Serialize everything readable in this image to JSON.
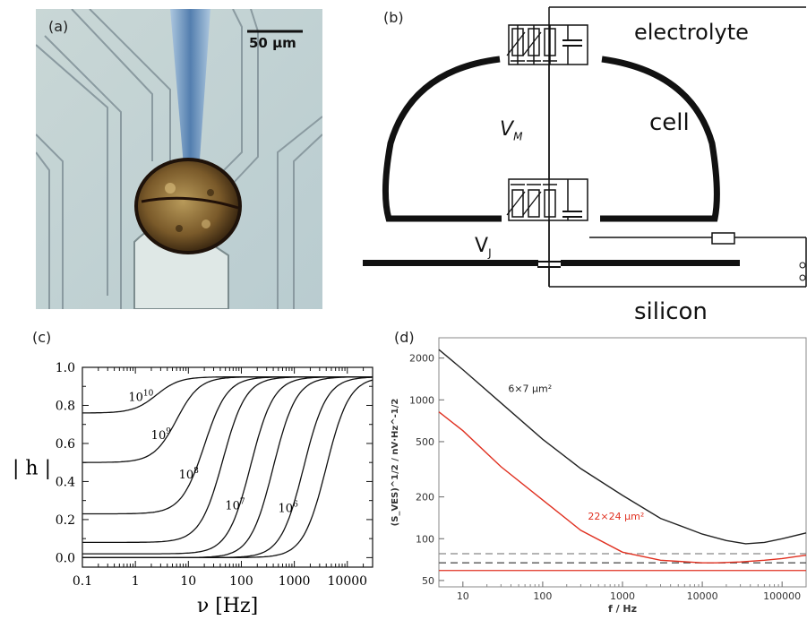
{
  "panels": {
    "a": {
      "label": "(a)",
      "scale_bar": "50 µm"
    },
    "b": {
      "label": "(b)",
      "electrolyte": "electrolyte",
      "cell": "cell",
      "silicon": "silicon",
      "vm": "V",
      "vm_sub": "M",
      "vj": "V",
      "vj_sub": "J"
    },
    "c": {
      "label": "(c)"
    },
    "d": {
      "label": "(d)"
    }
  },
  "chart_data": [
    {
      "id": "c",
      "type": "line",
      "title": "",
      "xlabel": "ν  [Hz]",
      "ylabel": "| h |",
      "xscale": "log",
      "xlim": [
        0.1,
        30000
      ],
      "ylim": [
        -0.05,
        1.0
      ],
      "xticks": [
        "0.1",
        "1",
        "10",
        "100",
        "1000",
        "10000"
      ],
      "yticks": [
        "0.0",
        "0.2",
        "0.4",
        "0.6",
        "0.8",
        "1.0"
      ],
      "grid": false,
      "series": [
        {
          "name": "10^10",
          "base": "10",
          "exp": "10",
          "low": 0.76,
          "high": 0.95,
          "fc": 2.5
        },
        {
          "name": "10^9",
          "base": "10",
          "exp": "9",
          "low": 0.5,
          "high": 0.95,
          "fc": 6
        },
        {
          "name": "10^8",
          "base": "10",
          "exp": "8",
          "low": 0.23,
          "high": 0.95,
          "fc": 20
        },
        {
          "name": "",
          "low": 0.08,
          "high": 0.95,
          "fc": 45
        },
        {
          "name": "10^7",
          "base": "10",
          "exp": "7",
          "low": 0.02,
          "high": 0.95,
          "fc": 150
        },
        {
          "name": "",
          "low": 0.0,
          "high": 0.95,
          "fc": 400
        },
        {
          "name": "10^6",
          "base": "10",
          "exp": "6",
          "low": 0.0,
          "high": 0.95,
          "fc": 1500
        },
        {
          "name": "",
          "low": 0.0,
          "high": 0.95,
          "fc": 4000
        }
      ]
    },
    {
      "id": "d",
      "type": "line",
      "title": "",
      "xlabel": "f / Hz",
      "ylabel": "(S_VES)^1/2 / nV·Hz^-1/2",
      "xscale": "log",
      "yscale": "log",
      "xlim": [
        5,
        200000
      ],
      "ylim": [
        45,
        2800
      ],
      "xticks": [
        "10",
        "100",
        "1000",
        "10000",
        "100000"
      ],
      "yticks": [
        "50",
        "100",
        "200",
        "500",
        "1000",
        "2000"
      ],
      "grid": false,
      "series": [
        {
          "name": "6×7 µm²",
          "color": "#222222",
          "x": [
            5,
            10,
            30,
            100,
            300,
            1000,
            3000,
            10000,
            20000,
            35000,
            60000,
            100000,
            200000
          ],
          "y": [
            2300,
            1650,
            950,
            520,
            320,
            205,
            140,
            108,
            97,
            92,
            94,
            100,
            110
          ]
        },
        {
          "name": "22×24 µm²",
          "color": "#e03020",
          "x": [
            5,
            10,
            30,
            100,
            300,
            1000,
            3000,
            10000,
            15000,
            30000,
            60000,
            100000,
            200000
          ],
          "y": [
            820,
            600,
            330,
            190,
            115,
            80,
            70,
            67,
            67,
            68,
            70,
            72,
            76
          ]
        }
      ],
      "reference_lines": [
        {
          "y": 78,
          "color": "#888888",
          "style": "dashed"
        },
        {
          "y": 67,
          "color": "#555555",
          "style": "dashed"
        },
        {
          "y": 59,
          "color": "#e03020",
          "style": "solid"
        }
      ]
    }
  ]
}
